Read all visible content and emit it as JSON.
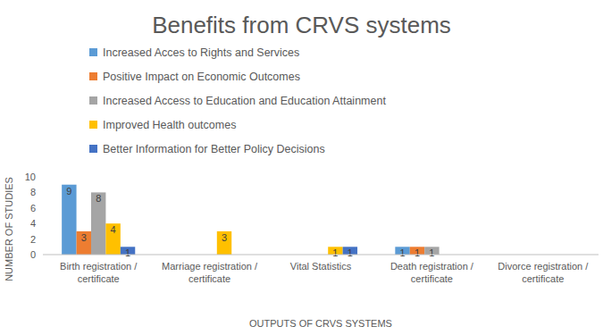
{
  "chart_data": {
    "type": "bar",
    "title": "Benefits from CRVS systems",
    "x_label": "OUTPUTS OF CRVS SYSTEMS",
    "y_label": "NUMBER OF STUDIES",
    "categories": [
      "Birth registration / certificate",
      "Marriage registration / certificate",
      "Vital Statistics",
      "Death registration / certificate",
      "Divorce registration / certificate"
    ],
    "series": [
      {
        "name": "Increased Acces to Rights and Services",
        "color": "#5b9bd5",
        "values": [
          9,
          null,
          null,
          1,
          null
        ]
      },
      {
        "name": "Positive Impact on Economic Outcomes",
        "color": "#ed7d31",
        "values": [
          3,
          null,
          null,
          1,
          null
        ]
      },
      {
        "name": "Increased Access to Education and Education Attainment",
        "color": "#a5a5a5",
        "values": [
          8,
          null,
          null,
          1,
          null
        ]
      },
      {
        "name": "Improved Health outcomes",
        "color": "#ffc000",
        "values": [
          4,
          3,
          1,
          null,
          null
        ]
      },
      {
        "name": "Better Information for Better Policy Decisions",
        "color": "#4472c4",
        "values": [
          1,
          null,
          1,
          null,
          null
        ]
      }
    ],
    "ylim": [
      0,
      10
    ],
    "yticks": [
      0,
      2,
      4,
      6,
      8,
      10
    ],
    "grid": false,
    "legend": "top-left",
    "data_labels": true
  }
}
